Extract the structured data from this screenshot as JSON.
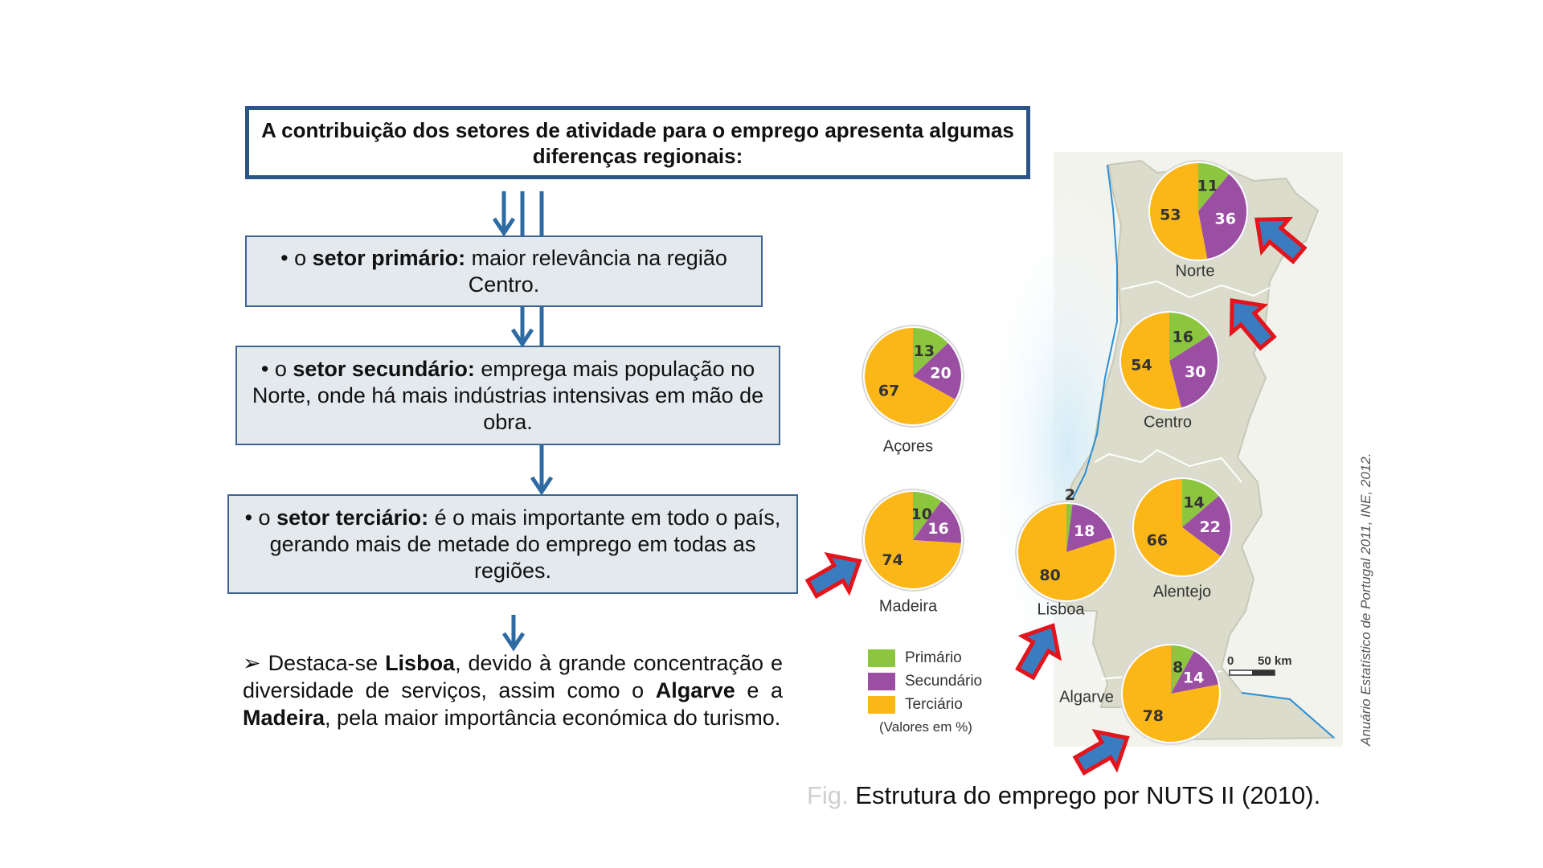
{
  "title": "A contribuição dos setores de atividade para o emprego apresenta algumas diferenças regionais:",
  "boxes": [
    {
      "bullet": "• o ",
      "bold": "setor primário:",
      "text": " maior relevância na região Centro."
    },
    {
      "bullet": "• o ",
      "bold": "setor secundário:",
      "text": " emprega mais população no Norte, onde há mais indústrias intensivas em mão de obra."
    },
    {
      "bullet": "• o ",
      "bold": "setor terciário:",
      "text": " é o mais importante em todo o país, gerando mais de metade do emprego em todas as regiões."
    }
  ],
  "conclusion": {
    "marker": "➢ ",
    "t1": "Destaca-se ",
    "b1": "Lisboa",
    "t2": ", devido à grande concentração e diversidade de serviços, assim como o ",
    "b2": "Algarve",
    "t3": " e a ",
    "b3": "Madeira",
    "t4": ", pela maior importância económica do turismo."
  },
  "chart_data": {
    "type": "pie",
    "unit_note": "(Valores em %)",
    "series_names": [
      "Primário",
      "Secundário",
      "Terciário"
    ],
    "colors": {
      "Primário": "#8cc63f",
      "Secundário": "#9b4fa3",
      "Terciário": "#fbb718"
    },
    "regions": [
      {
        "name": "Norte",
        "values": [
          11,
          36,
          53
        ]
      },
      {
        "name": "Centro",
        "values": [
          16,
          30,
          54
        ]
      },
      {
        "name": "Açores",
        "values": [
          13,
          20,
          67
        ]
      },
      {
        "name": "Madeira",
        "values": [
          10,
          16,
          74
        ]
      },
      {
        "name": "Lisboa",
        "values": [
          2,
          18,
          80
        ]
      },
      {
        "name": "Alentejo",
        "values": [
          14,
          22,
          66
        ]
      },
      {
        "name": "Algarve",
        "values": [
          8,
          14,
          78
        ]
      }
    ]
  },
  "legend": {
    "items": [
      "Primário",
      "Secundário",
      "Terciário"
    ],
    "note": "(Valores em %)"
  },
  "scale": {
    "zero": "0",
    "label": "50 km"
  },
  "source": "Anuário Estatístico de Portugal 2011, INE, 2012.",
  "caption": {
    "prefix": "Fig.",
    "text": " Estrutura do emprego por NUTS II (2010)."
  },
  "colors": {
    "box_border": "#3e6591",
    "arrow": "#2f6ba3",
    "highlight_arrow_fill": "#3a7cc0",
    "highlight_arrow_outline": "#e3141b",
    "map_land": "#dcdccc"
  }
}
